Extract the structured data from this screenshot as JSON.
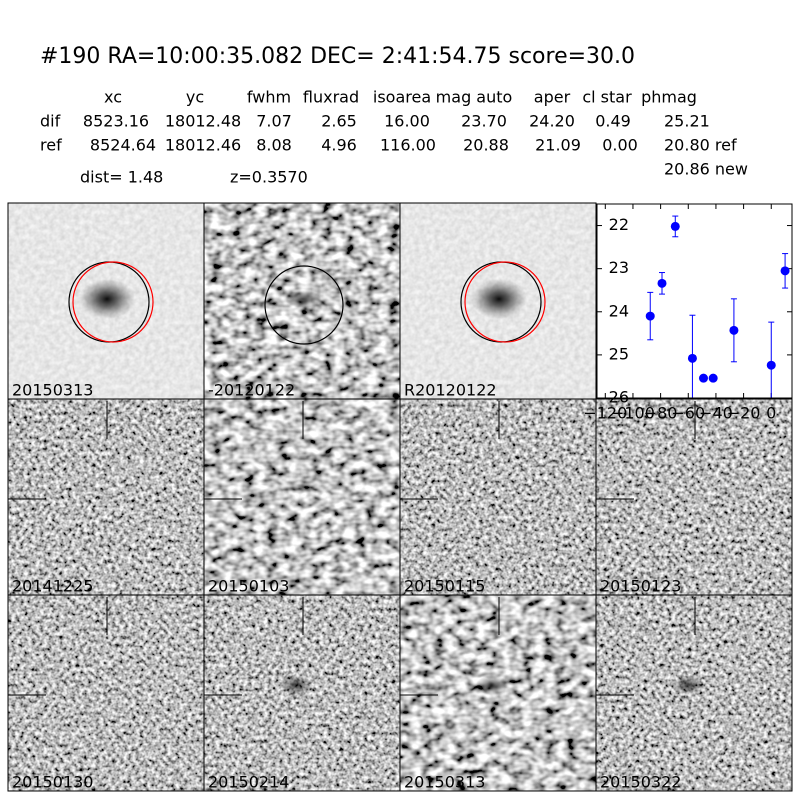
{
  "header": {
    "title": "#190   RA=10:00:35.082 DEC= 2:41:54.75      score=30.0"
  },
  "table": {
    "columns": [
      "xc",
      "yc",
      "fwhm",
      "fluxrad",
      "isoarea",
      "mag auto",
      "aper",
      "cl star",
      "phmag"
    ],
    "rows": [
      {
        "label": "dif",
        "cells": [
          "8523.16",
          "18012.48",
          "7.07",
          "2.65",
          "16.00",
          "23.70",
          "24.20",
          "0.49",
          "25.21"
        ]
      },
      {
        "label": "ref",
        "cells": [
          "8524.64",
          "18012.46",
          "8.08",
          "4.96",
          "116.00",
          "20.88",
          "21.09",
          "0.00",
          "20.80 ref"
        ]
      }
    ],
    "extra": "20.86 new"
  },
  "info": {
    "dist": "dist=  1.48",
    "z": "z=0.3570"
  },
  "stamps": [
    {
      "label": "20150313",
      "color": "#000000"
    },
    {
      "label": "-20120122",
      "color": "#000000"
    },
    {
      "label": "R20120122",
      "color": "#000000"
    },
    {
      "label": "20141225",
      "color": "#000000"
    },
    {
      "label": "20150103",
      "color": "#000000"
    },
    {
      "label": "20150115",
      "color": "#000000"
    },
    {
      "label": "20150123",
      "color": "#000000"
    },
    {
      "label": "20150130",
      "color": "#000000"
    },
    {
      "label": "20150214",
      "color": "#000000"
    },
    {
      "label": "20150313",
      "color": "#ff0000"
    },
    {
      "label": "20150322",
      "color": "#000000"
    }
  ],
  "chart_data": {
    "type": "errorbar",
    "color": "#0000ff",
    "x": [
      -87.5,
      -79,
      -69.4,
      -57,
      -49,
      -42,
      -27,
      0,
      10
    ],
    "values": [
      24.1,
      23.34,
      22.02,
      25.08,
      25.54,
      25.54,
      24.43,
      25.24,
      23.05
    ],
    "errors": [
      0.55,
      0.25,
      0.24,
      1.0,
      0.05,
      0.05,
      0.73,
      1.0,
      0.4
    ],
    "xlim": [
      -126,
      15
    ],
    "xticks": [
      {
        "value": -120,
        "label": "−120"
      },
      {
        "value": -100,
        "label": "−100"
      },
      {
        "value": -80,
        "label": "−80"
      },
      {
        "value": -60,
        "label": "−60"
      },
      {
        "value": -40,
        "label": "−40"
      },
      {
        "value": -20,
        "label": "−20"
      },
      0
    ],
    "ylim": [
      26,
      21.5
    ],
    "yticks": [
      22,
      23,
      24,
      25,
      26
    ]
  }
}
